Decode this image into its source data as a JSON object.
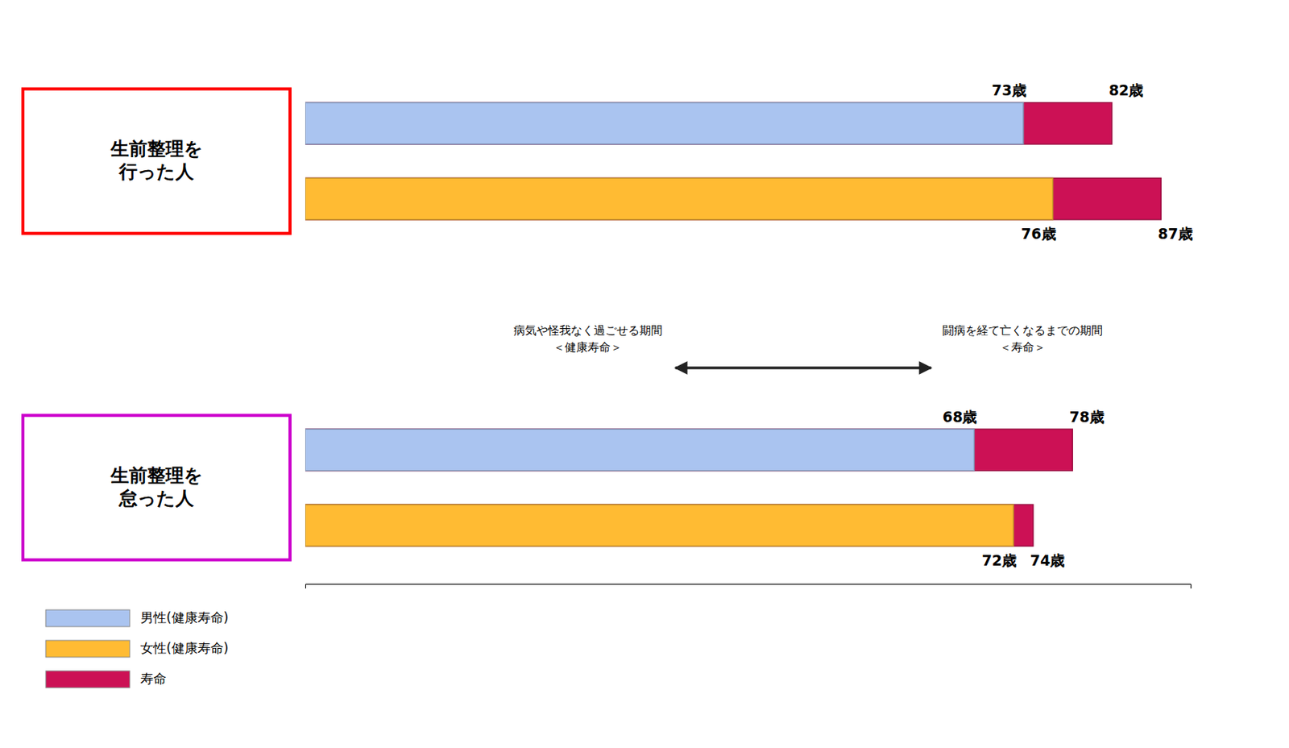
{
  "chart_data": {
    "type": "bar",
    "orientation": "horizontal",
    "categories": [
      null,
      null,
      null,
      null
    ],
    "series": [
      {
        "name": "男性(健康寿命)",
        "color": "#aac4f0",
        "values": [
          73,
          null,
          68,
          null
        ],
        "value_labels": [
          "73歳",
          null,
          "68歳",
          null
        ]
      },
      {
        "name": "女性(健康寿命)",
        "color": "#ffbb33",
        "values": [
          null,
          76,
          null,
          72
        ],
        "value_labels": [
          null,
          "76歳",
          null,
          "72歳"
        ]
      },
      {
        "name": "寿命",
        "color": "#cc1155",
        "values": [
          82,
          87,
          78,
          74
        ],
        "value_labels": [
          "82歳",
          "87歳",
          "78歳",
          "74歳"
        ]
      }
    ],
    "data_labels": true,
    "xlim": [
      0,
      90
    ],
    "tick_labels": false,
    "legend": "bottom-left",
    "annotations": [
      {
        "text": "生前整理を\n行った人",
        "color": "#ff0000"
      },
      {
        "text": "生前整理を\n怠った人",
        "color": "#cc00cc"
      },
      {
        "text": "病気や怪我なく過ごせる期間\n＜健康寿命＞"
      },
      {
        "text": "闘病を経て亡くなるまでの期間\n＜寿命＞"
      }
    ]
  }
}
